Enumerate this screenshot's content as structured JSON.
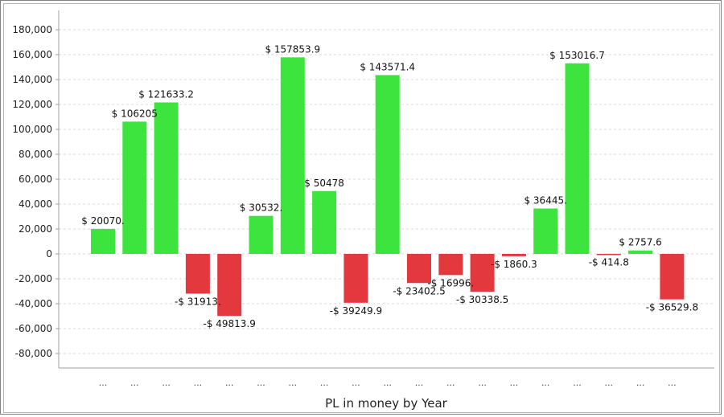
{
  "chart_data": {
    "type": "bar",
    "xlabel": "PL in money by Year",
    "ylabel": "",
    "ylim": [
      -80000,
      180000
    ],
    "yticks": [
      180000,
      160000,
      140000,
      120000,
      100000,
      80000,
      60000,
      40000,
      20000,
      0,
      -20000,
      -40000,
      -60000,
      -80000
    ],
    "ytick_labels": [
      "180,000",
      "160,000",
      "140,000",
      "120,000",
      "100,000",
      "80,000",
      "60,000",
      "40,000",
      "20,000",
      "0",
      "-20,000",
      "-40,000",
      "-60,000",
      "-80,000"
    ],
    "grid": true,
    "categories": [
      "...",
      "...",
      "...",
      "...",
      "...",
      "...",
      "...",
      "...",
      "...",
      "...",
      "...",
      "...",
      "...",
      "...",
      "...",
      "...",
      "...",
      "...",
      "..."
    ],
    "values": [
      20070,
      106205,
      121633.2,
      -31913,
      -49813.9,
      30532,
      157853.9,
      50478,
      -39249.9,
      143571.4,
      -23402.5,
      -16996,
      -30338.5,
      -1860.3,
      36445,
      153016.7,
      -414.8,
      2757.6,
      -36529.8
    ],
    "data_labels": [
      "$ 20070.",
      "$ 106205",
      "$ 121633.2",
      "-$ 31913.",
      "-$ 49813.9",
      "$ 30532.",
      "$ 157853.9",
      "$ 50478",
      "-$ 39249.9",
      "$ 143571.4",
      "-$ 23402.5",
      "-$ 16996.",
      "-$ 30338.5",
      "-$ 1860.3",
      "$ 36445.",
      "$ 153016.7",
      "-$ 414.8",
      "$ 2757.6",
      "-$ 36529.8"
    ],
    "colors": {
      "positive": "#3de43d",
      "negative": "#e4383f",
      "grid": "#d9d9d9",
      "axis": "#a0a0a0"
    }
  }
}
